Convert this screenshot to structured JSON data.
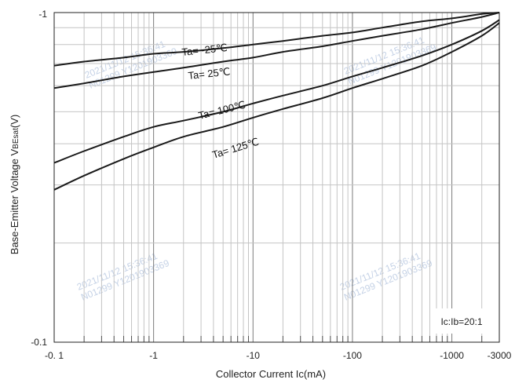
{
  "chart_data": {
    "type": "line",
    "xlabel": "Collector Current   Ic(mA)",
    "ylabel": {
      "main": "Base-Emitter Voltage   V",
      "subscript": "BEsat",
      "unit": "(V)"
    },
    "x_scale": "log",
    "y_scale": "log",
    "xlim": [
      0.1,
      3000
    ],
    "ylim": [
      0.1,
      1
    ],
    "x_tick_labels": [
      "-0. 1",
      "-1",
      "-10",
      "-100",
      "-1000",
      "-3000"
    ],
    "x_ticks": [
      0.1,
      1,
      10,
      100,
      1000,
      3000
    ],
    "y_tick_labels": [
      "-1",
      "-0.1"
    ],
    "y_ticks": [
      1,
      0.1
    ],
    "grid": true,
    "annotation": "Ic:Ib=20:1",
    "watermark": [
      "2021/11/12  15:36:41",
      "N01299  Y1201903369"
    ],
    "series": [
      {
        "name": "Ta= -25℃",
        "x": [
          0.1,
          0.2,
          0.5,
          1,
          2,
          5,
          10,
          20,
          50,
          100,
          200,
          500,
          1000,
          2000,
          3000
        ],
        "y": [
          0.69,
          0.71,
          0.73,
          0.75,
          0.76,
          0.78,
          0.8,
          0.82,
          0.85,
          0.87,
          0.9,
          0.94,
          0.96,
          0.99,
          1.0
        ]
      },
      {
        "name": "Ta= 25℃",
        "x": [
          0.1,
          0.2,
          0.5,
          1,
          2,
          5,
          10,
          20,
          50,
          100,
          200,
          500,
          1000,
          2000,
          3000
        ],
        "y": [
          0.59,
          0.61,
          0.64,
          0.66,
          0.68,
          0.71,
          0.73,
          0.76,
          0.79,
          0.82,
          0.85,
          0.89,
          0.93,
          0.97,
          1.0
        ]
      },
      {
        "name": "Ta= 100℃",
        "x": [
          0.1,
          0.2,
          0.5,
          1,
          2,
          5,
          10,
          20,
          50,
          100,
          200,
          500,
          1000,
          2000,
          3000
        ],
        "y": [
          0.35,
          0.38,
          0.42,
          0.45,
          0.47,
          0.5,
          0.53,
          0.56,
          0.6,
          0.64,
          0.68,
          0.74,
          0.8,
          0.88,
          0.95
        ]
      },
      {
        "name": "Ta= 125℃",
        "x": [
          0.1,
          0.2,
          0.5,
          1,
          2,
          5,
          10,
          20,
          50,
          100,
          200,
          500,
          1000,
          2000,
          3000
        ],
        "y": [
          0.29,
          0.32,
          0.36,
          0.39,
          0.42,
          0.45,
          0.48,
          0.51,
          0.55,
          0.59,
          0.63,
          0.69,
          0.76,
          0.85,
          0.93
        ]
      }
    ]
  }
}
